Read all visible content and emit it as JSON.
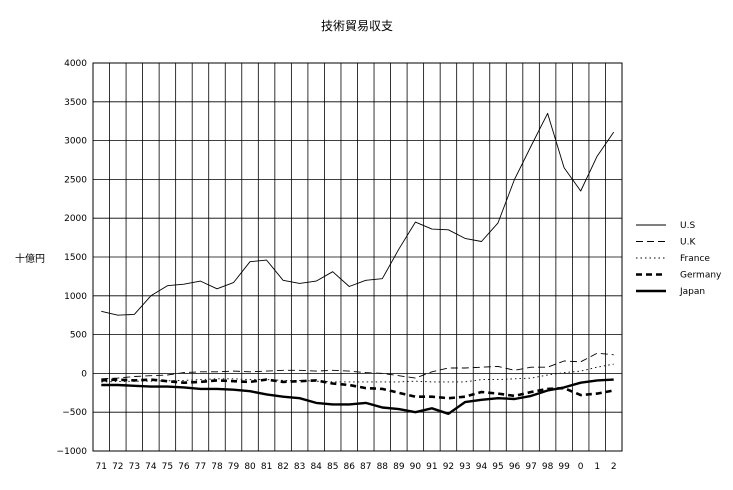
{
  "chart_data": {
    "type": "line",
    "title": "技術貿易収支",
    "ylabel": "十億円",
    "xlabel": "",
    "ylim": [
      -1000,
      4000
    ],
    "yticks": [
      4000,
      3500,
      3000,
      2500,
      2000,
      1500,
      1000,
      500,
      0,
      -500,
      -1000
    ],
    "ytick_labels": [
      "4000",
      "3500",
      "3000",
      "2500",
      "2000",
      "1500",
      "1000",
      "500",
      "0",
      "−500",
      "−1000"
    ],
    "categories": [
      "71",
      "72",
      "73",
      "74",
      "75",
      "76",
      "77",
      "78",
      "79",
      "80",
      "81",
      "82",
      "83",
      "84",
      "85",
      "86",
      "87",
      "88",
      "89",
      "90",
      "91",
      "92",
      "93",
      "94",
      "95",
      "96",
      "97",
      "98",
      "99",
      "0",
      "1",
      "2"
    ],
    "grid": true,
    "legend_position": "right",
    "series": [
      {
        "name": "U.S",
        "style": "thin-solid",
        "color": "#000000",
        "values": [
          800,
          750,
          760,
          1000,
          1130,
          1150,
          1190,
          1090,
          1170,
          1440,
          1460,
          1200,
          1160,
          1190,
          1310,
          1120,
          1200,
          1220,
          1600,
          1950,
          1860,
          1850,
          1740,
          1700,
          1940,
          2500,
          2930,
          3350,
          2650,
          2350,
          2800,
          3110
        ]
      },
      {
        "name": "U.K",
        "style": "dashed",
        "color": "#000000",
        "values": [
          -70,
          -60,
          -40,
          -30,
          -20,
          10,
          20,
          20,
          30,
          20,
          30,
          40,
          40,
          30,
          40,
          30,
          10,
          0,
          -30,
          -60,
          20,
          70,
          70,
          80,
          90,
          40,
          80,
          80,
          160,
          150,
          260,
          240
        ]
      },
      {
        "name": "France",
        "style": "dotted",
        "color": "#000000",
        "values": [
          -110,
          -105,
          -100,
          -100,
          -95,
          -90,
          -80,
          -70,
          -70,
          -80,
          -80,
          -90,
          -90,
          -100,
          -110,
          -110,
          -110,
          -110,
          -110,
          -100,
          -110,
          -110,
          -110,
          -80,
          -80,
          -70,
          -60,
          -20,
          10,
          30,
          80,
          120
        ]
      },
      {
        "name": "Germany",
        "style": "bold-dashed",
        "color": "#000000",
        "values": [
          -90,
          -80,
          -90,
          -80,
          -100,
          -120,
          -110,
          -90,
          -100,
          -110,
          -80,
          -110,
          -100,
          -90,
          -130,
          -150,
          -190,
          -200,
          -250,
          -300,
          -300,
          -320,
          -300,
          -240,
          -260,
          -290,
          -240,
          -200,
          -190,
          -280,
          -260,
          -220
        ]
      },
      {
        "name": "Japan",
        "style": "bold-solid",
        "color": "#000000",
        "values": [
          -150,
          -150,
          -160,
          -170,
          -170,
          -180,
          -200,
          -200,
          -210,
          -230,
          -270,
          -300,
          -320,
          -380,
          -400,
          -400,
          -380,
          -440,
          -460,
          -500,
          -450,
          -520,
          -370,
          -340,
          -320,
          -330,
          -290,
          -220,
          -180,
          -120,
          -90,
          -80
        ]
      }
    ]
  }
}
